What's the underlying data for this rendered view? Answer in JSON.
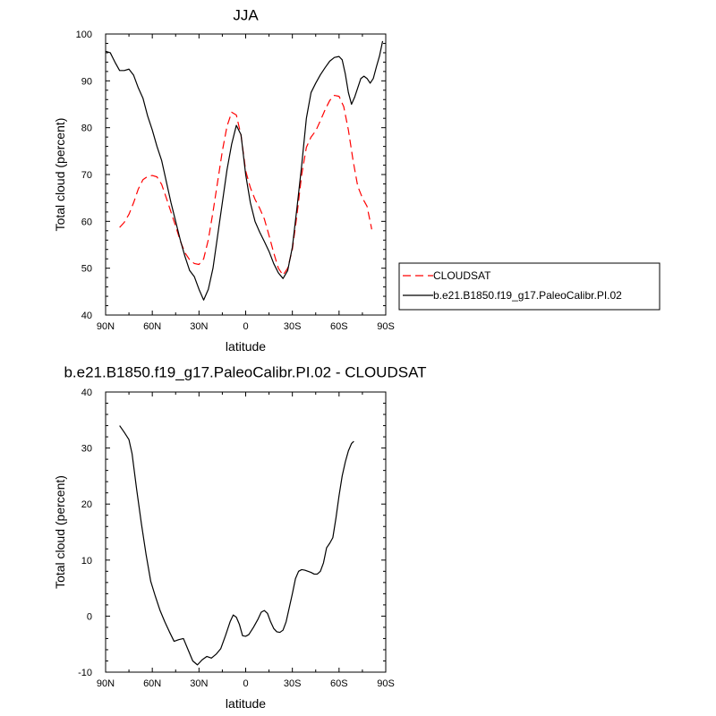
{
  "chart_data": [
    {
      "type": "line",
      "title": "JJA",
      "xlabel": "latitude",
      "ylabel": "Total cloud (percent)",
      "xlim": [
        -90,
        90
      ],
      "ylim": [
        40,
        100
      ],
      "xticks": [
        {
          "value": -90,
          "label": "90N"
        },
        {
          "value": -60,
          "label": "60N"
        },
        {
          "value": -30,
          "label": "30N"
        },
        {
          "value": 0,
          "label": "0"
        },
        {
          "value": 30,
          "label": "30S"
        },
        {
          "value": 60,
          "label": "60S"
        },
        {
          "value": 90,
          "label": "90S"
        }
      ],
      "yticks": [
        40,
        50,
        60,
        70,
        80,
        90,
        100
      ],
      "legend": "right",
      "series": [
        {
          "name": "CLOUDSAT",
          "color": "#ff0000",
          "dash": "dashed",
          "points": [
            [
              -81,
              58.7
            ],
            [
              -78,
              59.8
            ],
            [
              -75,
              61.5
            ],
            [
              -72,
              64
            ],
            [
              -69,
              66.9
            ],
            [
              -66,
              68.9
            ],
            [
              -63,
              69.6
            ],
            [
              -60,
              69.8
            ],
            [
              -57,
              69.5
            ],
            [
              -54,
              67.9
            ],
            [
              -51,
              65
            ],
            [
              -48,
              62
            ],
            [
              -45,
              59
            ],
            [
              -42,
              55.8
            ],
            [
              -39,
              53.3
            ],
            [
              -36,
              51.8
            ],
            [
              -33,
              51
            ],
            [
              -30,
              50.8
            ],
            [
              -27,
              52
            ],
            [
              -24,
              56.1
            ],
            [
              -21,
              62
            ],
            [
              -18,
              68.5
            ],
            [
              -15,
              75
            ],
            [
              -12,
              80.3
            ],
            [
              -9,
              83.3
            ],
            [
              -6,
              82.7
            ],
            [
              -3,
              78.4
            ],
            [
              0,
              70.8
            ],
            [
              3,
              67.2
            ],
            [
              6,
              64.7
            ],
            [
              9,
              62.8
            ],
            [
              12,
              60.5
            ],
            [
              15,
              57
            ],
            [
              18,
              53.3
            ],
            [
              21,
              50
            ],
            [
              24,
              48.5
            ],
            [
              27,
              50
            ],
            [
              30,
              54
            ],
            [
              33,
              61.5
            ],
            [
              36,
              70
            ],
            [
              39,
              75.8
            ],
            [
              42,
              78
            ],
            [
              45,
              79.3
            ],
            [
              48,
              81.5
            ],
            [
              51,
              83.8
            ],
            [
              54,
              85.8
            ],
            [
              57,
              86.9
            ],
            [
              60,
              86.7
            ],
            [
              63,
              84.5
            ],
            [
              66,
              79.5
            ],
            [
              69,
              73
            ],
            [
              72,
              67.5
            ],
            [
              75,
              65
            ],
            [
              78,
              63.2
            ],
            [
              81,
              58.3
            ]
          ]
        },
        {
          "name": "b.e21.B1850.f19_g17.PaleoCalibr.PI.02",
          "color": "#000000",
          "dash": "solid",
          "points": [
            [
              -90,
              96.3
            ],
            [
              -87,
              96
            ],
            [
              -84,
              94
            ],
            [
              -81,
              92.2
            ],
            [
              -78,
              92.2
            ],
            [
              -75,
              92.5
            ],
            [
              -72,
              91.2
            ],
            [
              -69,
              88.5
            ],
            [
              -66,
              86.3
            ],
            [
              -63,
              82.5
            ],
            [
              -60,
              79.5
            ],
            [
              -57,
              76
            ],
            [
              -54,
              73
            ],
            [
              -51,
              68.5
            ],
            [
              -48,
              64
            ],
            [
              -45,
              60
            ],
            [
              -42,
              56
            ],
            [
              -39,
              52.5
            ],
            [
              -36,
              49.5
            ],
            [
              -33,
              48.2
            ],
            [
              -30,
              45.5
            ],
            [
              -27,
              43.2
            ],
            [
              -24,
              45.5
            ],
            [
              -21,
              50
            ],
            [
              -18,
              57
            ],
            [
              -15,
              64
            ],
            [
              -12,
              71
            ],
            [
              -9,
              76.5
            ],
            [
              -6,
              80.5
            ],
            [
              -3,
              78.5
            ],
            [
              0,
              70
            ],
            [
              3,
              64
            ],
            [
              6,
              60
            ],
            [
              9,
              57.7
            ],
            [
              12,
              55.7
            ],
            [
              15,
              53.6
            ],
            [
              18,
              51
            ],
            [
              21,
              49
            ],
            [
              24,
              47.8
            ],
            [
              27,
              49.5
            ],
            [
              30,
              54.5
            ],
            [
              33,
              63
            ],
            [
              36,
              72
            ],
            [
              39,
              82
            ],
            [
              42,
              87.5
            ],
            [
              45,
              89.5
            ],
            [
              48,
              91.3
            ],
            [
              51,
              92.8
            ],
            [
              54,
              94.2
            ],
            [
              57,
              95
            ],
            [
              60,
              95.2
            ],
            [
              62,
              94.5
            ],
            [
              64,
              91.5
            ],
            [
              66,
              87.5
            ],
            [
              68,
              85
            ],
            [
              70,
              86.5
            ],
            [
              72,
              88.5
            ],
            [
              74,
              90.5
            ],
            [
              76,
              91
            ],
            [
              78,
              90.5
            ],
            [
              80,
              89.5
            ],
            [
              82,
              90.5
            ],
            [
              84,
              93
            ],
            [
              86,
              95.3
            ],
            [
              88,
              98.5
            ]
          ]
        }
      ]
    },
    {
      "type": "line",
      "title": "b.e21.B1850.f19_g17.PaleoCalibr.PI.02 - CLOUDSAT",
      "xlabel": "latitude",
      "ylabel": "Total cloud (percent)",
      "xlim": [
        -90,
        90
      ],
      "ylim": [
        -10,
        40
      ],
      "xticks": [
        {
          "value": -90,
          "label": "90N"
        },
        {
          "value": -60,
          "label": "60N"
        },
        {
          "value": -30,
          "label": "30N"
        },
        {
          "value": 0,
          "label": "0"
        },
        {
          "value": 30,
          "label": "30S"
        },
        {
          "value": 60,
          "label": "60S"
        },
        {
          "value": 90,
          "label": "90S"
        }
      ],
      "yticks": [
        -10,
        0,
        10,
        20,
        30,
        40
      ],
      "series": [
        {
          "color": "#000000",
          "dash": "solid",
          "points": [
            [
              -81,
              34
            ],
            [
              -78,
              32.8
            ],
            [
              -75,
              31.5
            ],
            [
              -73,
              29
            ],
            [
              -70,
              22.5
            ],
            [
              -67,
              16.5
            ],
            [
              -64,
              11
            ],
            [
              -61,
              6.2
            ],
            [
              -58,
              3.5
            ],
            [
              -55,
              1
            ],
            [
              -52,
              -1
            ],
            [
              -49,
              -2.8
            ],
            [
              -46,
              -4.5
            ],
            [
              -43,
              -4.2
            ],
            [
              -40,
              -4
            ],
            [
              -37,
              -6
            ],
            [
              -34,
              -8
            ],
            [
              -31,
              -8.7
            ],
            [
              -28,
              -7.8
            ],
            [
              -25,
              -7.2
            ],
            [
              -22,
              -7.5
            ],
            [
              -19,
              -6.8
            ],
            [
              -16,
              -5.8
            ],
            [
              -13,
              -3.5
            ],
            [
              -10,
              -1
            ],
            [
              -8,
              0.2
            ],
            [
              -6,
              -0.2
            ],
            [
              -4,
              -1.5
            ],
            [
              -2,
              -3.5
            ],
            [
              0,
              -3.6
            ],
            [
              2,
              -3.3
            ],
            [
              5,
              -2
            ],
            [
              8,
              -0.5
            ],
            [
              10,
              0.7
            ],
            [
              12,
              1
            ],
            [
              14,
              0.5
            ],
            [
              16,
              -1
            ],
            [
              18,
              -2.2
            ],
            [
              20,
              -2.8
            ],
            [
              22,
              -2.9
            ],
            [
              24,
              -2.5
            ],
            [
              26,
              -1
            ],
            [
              28,
              1.5
            ],
            [
              30,
              4
            ],
            [
              32,
              6.7
            ],
            [
              34,
              8
            ],
            [
              36,
              8.3
            ],
            [
              38,
              8.2
            ],
            [
              40,
              8
            ],
            [
              42,
              7.8
            ],
            [
              44,
              7.5
            ],
            [
              46,
              7.5
            ],
            [
              48,
              8
            ],
            [
              50,
              9.5
            ],
            [
              52,
              12.2
            ],
            [
              54,
              13
            ],
            [
              56,
              14
            ],
            [
              58,
              17.5
            ],
            [
              60,
              21.5
            ],
            [
              62,
              25
            ],
            [
              64,
              27.5
            ],
            [
              66,
              29.5
            ],
            [
              68,
              30.8
            ],
            [
              69.5,
              31.2
            ]
          ]
        }
      ]
    }
  ]
}
